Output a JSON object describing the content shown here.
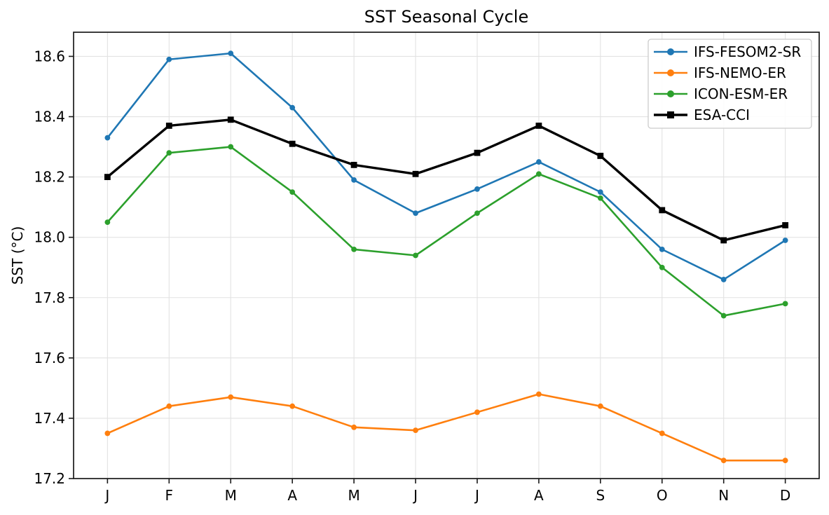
{
  "figure": {
    "title": "SST Seasonal Cycle",
    "ylabel": "SST (°C)"
  },
  "chart_data": {
    "type": "line",
    "title": "SST Seasonal Cycle",
    "xlabel": "",
    "ylabel": "SST (°C)",
    "categories": [
      "J",
      "F",
      "M",
      "A",
      "M",
      "J",
      "J",
      "A",
      "S",
      "O",
      "N",
      "D"
    ],
    "yticks": [
      17.2,
      17.4,
      17.6,
      17.8,
      18.0,
      18.2,
      18.4,
      18.6
    ],
    "ytick_labels": [
      "17.2",
      "17.4",
      "17.6",
      "17.8",
      "18.0",
      "18.2",
      "18.4",
      "18.6"
    ],
    "ylim": [
      17.2,
      18.68
    ],
    "grid": true,
    "grid_color": "#e2e2e2",
    "spine_color": "#1a1a1a",
    "legend_position": "upper right",
    "series": [
      {
        "name": "IFS-FESOM2-SR",
        "color": "#1f77b4",
        "marker": "circle",
        "linewidth": 2.6,
        "values": [
          18.33,
          18.59,
          18.61,
          18.43,
          18.19,
          18.08,
          18.16,
          18.25,
          18.15,
          17.96,
          17.86,
          17.99
        ]
      },
      {
        "name": "IFS-NEMO-ER",
        "color": "#ff7f0e",
        "marker": "circle",
        "linewidth": 2.6,
        "values": [
          17.35,
          17.44,
          17.47,
          17.44,
          17.37,
          17.36,
          17.42,
          17.48,
          17.44,
          17.35,
          17.26,
          17.26
        ]
      },
      {
        "name": "ICON-ESM-ER",
        "color": "#2ca02c",
        "marker": "circle",
        "linewidth": 2.6,
        "values": [
          18.05,
          18.28,
          18.3,
          18.15,
          17.96,
          17.94,
          18.08,
          18.21,
          18.13,
          17.9,
          17.74,
          17.78
        ]
      },
      {
        "name": "ESA-CCI",
        "color": "#000000",
        "marker": "square",
        "linewidth": 3.4,
        "values": [
          18.2,
          18.37,
          18.39,
          18.31,
          18.24,
          18.21,
          18.28,
          18.37,
          18.27,
          18.09,
          17.99,
          18.04
        ]
      }
    ]
  }
}
